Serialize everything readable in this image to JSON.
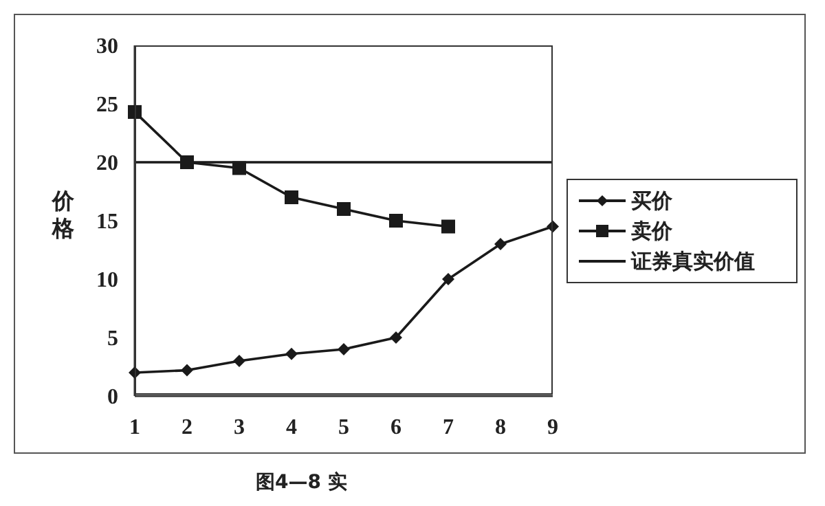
{
  "chart_data": {
    "type": "line",
    "ylabel": "价格",
    "categories": [
      "1",
      "2",
      "3",
      "4",
      "5",
      "6",
      "7",
      "8",
      "9"
    ],
    "series": [
      {
        "name": "买价",
        "color": "#1a1a1a",
        "marker": "diamond",
        "values": [
          2,
          2.2,
          3,
          3.6,
          4,
          5,
          10,
          13,
          14.5
        ]
      },
      {
        "name": "卖价",
        "color": "#1a1a1a",
        "marker": "square",
        "values": [
          24.3,
          20,
          19.5,
          17,
          16,
          15,
          14.5,
          null,
          null
        ]
      },
      {
        "name": "证券真实价值",
        "color": "#1a1a1a",
        "marker": "none",
        "values": [
          20,
          20,
          20,
          20,
          20,
          20,
          20,
          20,
          20
        ]
      }
    ],
    "ylim": [
      0,
      30
    ],
    "yticks": [
      0,
      5,
      10,
      15,
      20,
      25,
      30
    ],
    "grid": false,
    "legend": "right",
    "annotations": [
      "图4—8 实"
    ]
  }
}
